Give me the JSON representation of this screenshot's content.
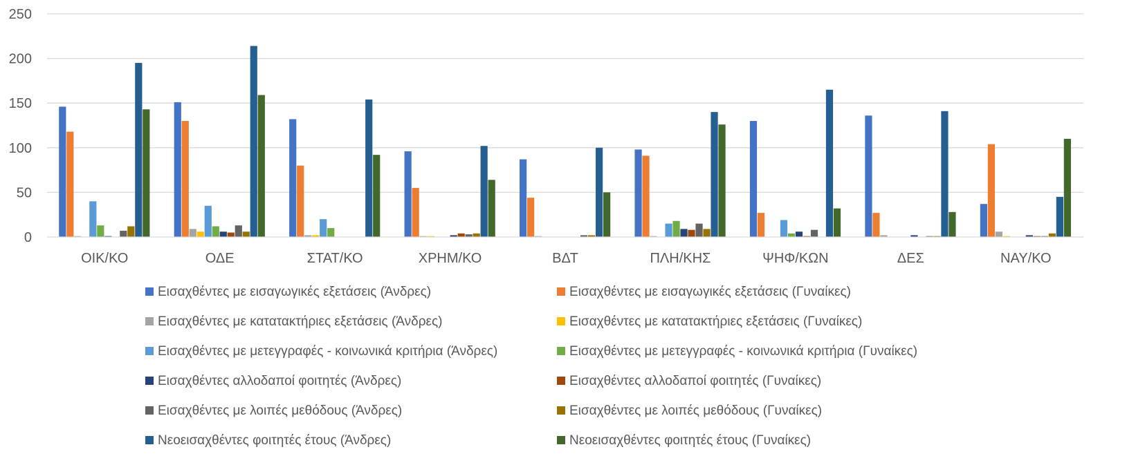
{
  "chart_data": {
    "type": "bar",
    "title": "",
    "xlabel": "",
    "ylabel": "",
    "ylim": [
      0,
      250
    ],
    "yticks": [
      0,
      50,
      100,
      150,
      200,
      250
    ],
    "grid": true,
    "legend_position": "bottom",
    "categories": [
      "ΟΙΚ/ΚΟ",
      "ΟΔΕ",
      "ΣΤΑΤ/ΚΟ",
      "ΧΡΗΜ/ΚΟ",
      "ΒΔΤ",
      "ΠΛΗ/ΚΗΣ",
      "ΨΗΦ/ΚΩΝ",
      "ΔΕΣ",
      "ΝΑΥ/ΚΟ"
    ],
    "series": [
      {
        "name": "Εισαχθέντες με εισαγωγικές εξετάσεις (Άνδρες)",
        "color": "#4472C4",
        "values": [
          146,
          151,
          132,
          96,
          87,
          98,
          130,
          136,
          37
        ]
      },
      {
        "name": "Εισαχθέντες με εισαγωγικές εξετάσεις (Γυναίκες)",
        "color": "#ED7D31",
        "values": [
          118,
          130,
          80,
          55,
          44,
          91,
          27,
          27,
          104
        ]
      },
      {
        "name": "Εισαχθέντες με κατατακτήριες εξετάσεις (Άνδρες)",
        "color": "#A5A5A5",
        "values": [
          1,
          9,
          2,
          1,
          1,
          1,
          0,
          2,
          6
        ]
      },
      {
        "name": "Εισαχθέντες με κατατακτήριες εξετάσεις (Γυναίκες)",
        "color": "#FFC000",
        "values": [
          0,
          6,
          2,
          1,
          0,
          0,
          0,
          0,
          1
        ]
      },
      {
        "name": "Εισαχθέντες με μετεγγραφές - κοινωνικά κριτήρια (Άνδρες)",
        "color": "#5B9BD5",
        "values": [
          40,
          35,
          20,
          0,
          0,
          15,
          19,
          0,
          0
        ]
      },
      {
        "name": "Εισαχθέντες με μετεγγραφές - κοινωνικά κριτήρια (Γυναίκες)",
        "color": "#70AD47",
        "values": [
          13,
          12,
          10,
          0,
          0,
          18,
          4,
          0,
          0
        ]
      },
      {
        "name": "Εισαχθέντες αλλοδαποί φοιτητές (Άνδρες)",
        "color": "#264478",
        "values": [
          1,
          6,
          0,
          2,
          0,
          9,
          6,
          2,
          2
        ]
      },
      {
        "name": "Εισαχθέντες αλλοδαποί φοιτητές (Γυναίκες)",
        "color": "#9E480E",
        "values": [
          0,
          5,
          0,
          4,
          0,
          8,
          1,
          0,
          1
        ]
      },
      {
        "name": "Εισαχθέντες με λοιπές μεθόδους (Άνδρες)",
        "color": "#636363",
        "values": [
          7,
          13,
          0,
          3,
          2,
          15,
          8,
          1,
          1
        ]
      },
      {
        "name": "Εισαχθέντες με λοιπές μεθόδους (Γυναίκες)",
        "color": "#997300",
        "values": [
          12,
          6,
          0,
          4,
          2,
          9,
          0,
          1,
          4
        ]
      },
      {
        "name": "Νεοεισαχθέντες φοιτητές έτους (Άνδρες)",
        "color": "#255E91",
        "values": [
          195,
          214,
          154,
          102,
          100,
          140,
          165,
          141,
          45
        ]
      },
      {
        "name": "Νεοεισαχθέντες φοιτητές έτους (Γυναίκες)",
        "color": "#43682B",
        "values": [
          143,
          159,
          92,
          64,
          50,
          126,
          32,
          28,
          110
        ]
      }
    ]
  }
}
